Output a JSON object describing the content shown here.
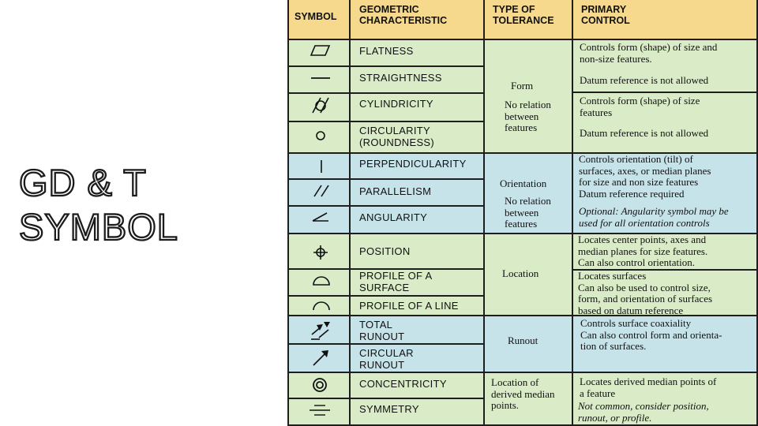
{
  "slide_title": {
    "line1": "GD & T",
    "line2": "SYMBOL"
  },
  "table": {
    "headers": {
      "symbol": "SYMBOL",
      "characteristic": "GEOMETRIC\nCHARACTERISTIC",
      "tolerance": "TYPE OF\nTOLERANCE",
      "control": "PRIMARY\nCONTROL"
    },
    "rows": [
      {
        "icon": "flatness-icon",
        "characteristic": "FLATNESS"
      },
      {
        "icon": "straightness-icon",
        "characteristic": "STRAIGHTNESS"
      },
      {
        "icon": "cylindricity-icon",
        "characteristic": "CYLINDRICITY"
      },
      {
        "icon": "circularity-icon",
        "characteristic": "CIRCULARITY\n(ROUNDNESS)"
      },
      {
        "icon": "perpendicularity-icon",
        "characteristic": "PERPENDICULARITY"
      },
      {
        "icon": "parallelism-icon",
        "characteristic": "PARALLELISM"
      },
      {
        "icon": "angularity-icon",
        "characteristic": "ANGULARITY"
      },
      {
        "icon": "position-icon",
        "characteristic": "POSITION"
      },
      {
        "icon": "profile-surface-icon",
        "characteristic": "PROFILE OF A\nSURFACE"
      },
      {
        "icon": "profile-line-icon",
        "characteristic": "PROFILE OF A LINE"
      },
      {
        "icon": "total-runout-icon",
        "characteristic": "TOTAL\nRUNOUT"
      },
      {
        "icon": "circular-runout-icon",
        "characteristic": "CIRCULAR\nRUNOUT"
      },
      {
        "icon": "concentricity-icon",
        "characteristic": "CONCENTRICITY"
      },
      {
        "icon": "symmetry-icon",
        "characteristic": "SYMMETRY"
      }
    ],
    "tolerance_groups": {
      "form": {
        "type": "Form",
        "note": "No relation\nbetween\nfeatures"
      },
      "orientation": {
        "type": "Orientation",
        "note": "No relation\nbetween\nfeatures"
      },
      "location": {
        "type": "Location"
      },
      "runout": {
        "type": "Runout"
      },
      "derived": {
        "type": "Location of\nderived median\npoints."
      }
    },
    "controls": {
      "flat_straight_1": "Controls form (shape) of size and\nnon-size features.",
      "flat_straight_2": "Datum reference is not allowed",
      "cyl_circ_1": "Controls form (shape) of size\nfeatures",
      "cyl_circ_2": "Datum reference is not allowed",
      "orientation_1": "Controls orientation (tilt) of\nsurfaces, axes, or median planes\nfor size and non size features\nDatum reference required",
      "orientation_2": "Optional: Angularity symbol may be\nused for all orientation controls",
      "position": "Locates center points, axes and\nmedian planes for size features.\nCan also control orientation.",
      "profile": "Locates surfaces\nCan also be used to control size,\nform, and orientation of surfaces\nbased on datum reference",
      "runout": "Controls surface coaxiality\nCan also control form and orienta-\ntion of surfaces.",
      "derived_1": "Locates derived median points of\na feature",
      "derived_2": "Not common, consider position,\nrunout, or profile."
    }
  }
}
